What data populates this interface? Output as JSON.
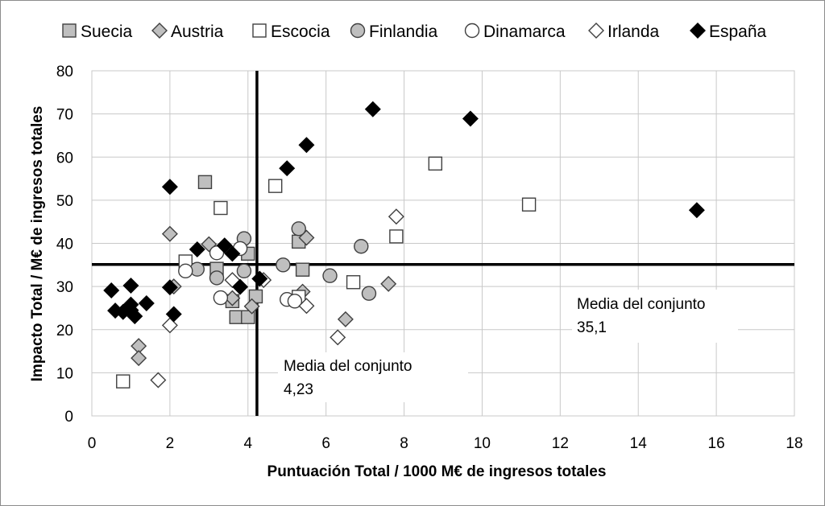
{
  "chart_data": {
    "type": "scatter",
    "title": "",
    "xlabel": "Puntuación Total / 1000 M€ de ingresos totales",
    "ylabel": "Impacto Total / M€ de ingresos totales",
    "xlim": [
      0,
      18
    ],
    "ylim": [
      0,
      80
    ],
    "x_ticks": [
      "0",
      "2",
      "4",
      "6",
      "8",
      "10",
      "12",
      "14",
      "16",
      "18"
    ],
    "y_ticks": [
      "0",
      "10",
      "20",
      "30",
      "40",
      "50",
      "60",
      "70",
      "80"
    ],
    "grid": true,
    "legend_position": "top",
    "series": [
      {
        "name": "Suecia",
        "marker": "square",
        "fill": "#bfbfbf",
        "stroke": "#404040",
        "points": [
          [
            2.9,
            54.2
          ],
          [
            3.2,
            34.1
          ],
          [
            3.6,
            26.6
          ],
          [
            3.7,
            22.9
          ],
          [
            4.0,
            22.9
          ],
          [
            4.0,
            37.6
          ],
          [
            4.2,
            27.7
          ],
          [
            5.3,
            40.4
          ],
          [
            5.4,
            33.9
          ]
        ]
      },
      {
        "name": "Austria",
        "marker": "diamond",
        "fill": "#bfbfbf",
        "stroke": "#404040",
        "points": [
          [
            1.2,
            16.2
          ],
          [
            1.2,
            13.4
          ],
          [
            2.0,
            42.2
          ],
          [
            2.1,
            30.0
          ],
          [
            3.0,
            39.8
          ],
          [
            3.6,
            27.3
          ],
          [
            4.1,
            25.4
          ],
          [
            5.4,
            28.8
          ],
          [
            5.5,
            41.3
          ],
          [
            6.5,
            22.4
          ],
          [
            7.6,
            30.6
          ]
        ]
      },
      {
        "name": "Escocia",
        "marker": "square",
        "fill": "#ffffff",
        "stroke": "#404040",
        "points": [
          [
            0.8,
            8.0
          ],
          [
            2.4,
            35.8
          ],
          [
            3.3,
            48.2
          ],
          [
            4.7,
            53.3
          ],
          [
            5.3,
            27.6
          ],
          [
            6.7,
            31.0
          ],
          [
            7.8,
            41.6
          ],
          [
            8.8,
            58.5
          ],
          [
            11.2,
            49.0
          ]
        ]
      },
      {
        "name": "Finlandia",
        "marker": "circle",
        "fill": "#bfbfbf",
        "stroke": "#404040",
        "points": [
          [
            2.7,
            34.0
          ],
          [
            3.2,
            32.0
          ],
          [
            3.9,
            41.1
          ],
          [
            3.9,
            33.6
          ],
          [
            4.9,
            35.0
          ],
          [
            5.3,
            43.4
          ],
          [
            6.1,
            32.5
          ],
          [
            6.9,
            39.3
          ],
          [
            7.1,
            28.4
          ]
        ]
      },
      {
        "name": "Dinamarca",
        "marker": "circle",
        "fill": "#ffffff",
        "stroke": "#404040",
        "points": [
          [
            2.4,
            33.6
          ],
          [
            3.2,
            37.8
          ],
          [
            3.3,
            27.4
          ],
          [
            3.8,
            38.8
          ],
          [
            5.0,
            27.0
          ],
          [
            5.2,
            26.6
          ]
        ]
      },
      {
        "name": "Irlanda",
        "marker": "diamond",
        "fill": "#ffffff",
        "stroke": "#404040",
        "points": [
          [
            1.7,
            8.3
          ],
          [
            2.0,
            21.0
          ],
          [
            3.6,
            31.5
          ],
          [
            4.4,
            31.5
          ],
          [
            5.5,
            25.5
          ],
          [
            6.3,
            18.2
          ],
          [
            7.8,
            46.2
          ]
        ]
      },
      {
        "name": "España",
        "marker": "diamond",
        "fill": "#000000",
        "stroke": "#000000",
        "points": [
          [
            0.5,
            29.1
          ],
          [
            0.6,
            24.4
          ],
          [
            0.8,
            24.1
          ],
          [
            1.0,
            25.8
          ],
          [
            1.0,
            30.2
          ],
          [
            1.1,
            23.1
          ],
          [
            1.0,
            24.5
          ],
          [
            1.4,
            26.1
          ],
          [
            2.0,
            29.8
          ],
          [
            2.0,
            53.1
          ],
          [
            2.1,
            23.6
          ],
          [
            2.7,
            38.6
          ],
          [
            3.4,
            39.5
          ],
          [
            3.6,
            37.6
          ],
          [
            3.8,
            29.9
          ],
          [
            4.3,
            31.8
          ],
          [
            5.0,
            57.4
          ],
          [
            5.5,
            62.8
          ],
          [
            7.2,
            71.1
          ],
          [
            9.7,
            68.9
          ],
          [
            15.5,
            47.7
          ]
        ]
      }
    ],
    "reference_lines": [
      {
        "axis": "x",
        "value": 4.23
      },
      {
        "axis": "y",
        "value": 35.1
      }
    ],
    "annotations": [
      {
        "label": "Media del conjunto",
        "value": "4,23"
      },
      {
        "label": "Media del conjunto",
        "value": "35,1"
      }
    ]
  }
}
